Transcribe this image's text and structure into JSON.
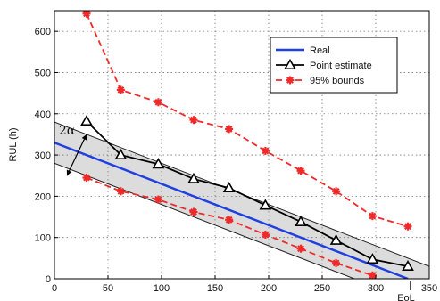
{
  "chart_data": {
    "type": "line",
    "xlabel": "",
    "ylabel": "RUL (h)",
    "xlim": [
      0,
      350
    ],
    "ylim": [
      0,
      650
    ],
    "xticks": [
      0,
      50,
      100,
      150,
      200,
      250,
      300,
      350
    ],
    "yticks": [
      0,
      100,
      200,
      300,
      400,
      500,
      600
    ],
    "grid": "on",
    "legend_position": "top-right",
    "annotations": [
      {
        "text": "2α"
      },
      {
        "text": "EoL"
      }
    ],
    "band": {
      "upper": {
        "x": [
          0,
          350
        ],
        "y": [
          380,
          30
        ]
      },
      "lower": {
        "x": [
          0,
          350
        ],
        "y": [
          280,
          -70
        ]
      }
    },
    "alpha_marker_x": 30,
    "series": [
      {
        "name": "Real",
        "color": "#1f3fe0",
        "style": "solid",
        "marker": "none",
        "x": [
          0,
          330
        ],
        "y": [
          330,
          0
        ]
      },
      {
        "name": "Point estimate",
        "color": "#000000",
        "style": "solid",
        "marker": "triangle",
        "x": [
          30,
          62,
          97,
          130,
          163,
          197,
          230,
          263,
          297,
          330
        ],
        "y": [
          382,
          300,
          278,
          242,
          220,
          178,
          138,
          93,
          47,
          30
        ]
      },
      {
        "name": "95% bounds",
        "color": "#ee2a2a",
        "style": "dashed",
        "marker": "star",
        "x": [
          30,
          62,
          97,
          130,
          163,
          197,
          230,
          263,
          297,
          330
        ],
        "y": [
          643,
          458,
          428,
          385,
          363,
          310,
          262,
          212,
          152,
          127
        ]
      },
      {
        "name": "",
        "color": "#ee2a2a",
        "style": "dashed",
        "marker": "star",
        "x": [
          30,
          62,
          97,
          130,
          163,
          197,
          230,
          263,
          297
        ],
        "y": [
          245,
          212,
          192,
          162,
          143,
          107,
          73,
          38,
          8
        ]
      }
    ]
  }
}
